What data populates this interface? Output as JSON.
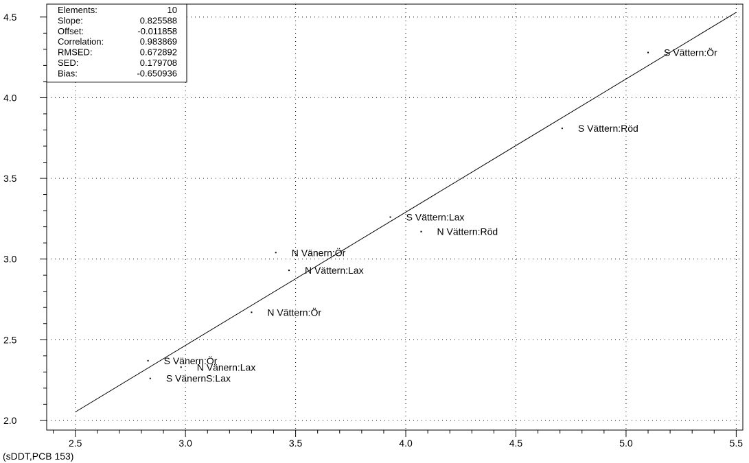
{
  "chart_data": {
    "type": "scatter",
    "xlim": [
      2.37,
      5.53
    ],
    "ylim": [
      1.94,
      4.58
    ],
    "x_ticks": [
      2.5,
      3.0,
      3.5,
      4.0,
      4.5,
      5.0,
      5.5
    ],
    "x_tick_labels": [
      "2.5",
      "3.0",
      "3.5",
      "4.0",
      "4.5",
      "5.0",
      "5.5"
    ],
    "y_ticks": [
      2.0,
      2.5,
      3.0,
      3.5,
      4.0,
      4.5
    ],
    "y_tick_labels": [
      "2.0",
      "2.5",
      "3.0",
      "3.5",
      "4.0",
      "4.5"
    ],
    "grid": true,
    "grid_style": "dotted",
    "footer_label": "(sDDT,PCB 153)",
    "regression_line": {
      "slope": 0.825588,
      "offset": -0.011858,
      "x_range": [
        2.5,
        5.5
      ]
    },
    "stats": [
      {
        "label": "Elements:",
        "value": "10"
      },
      {
        "label": "Slope:",
        "value": "0.825588"
      },
      {
        "label": "Offset:",
        "value": "-0.011858"
      },
      {
        "label": "Correlation:",
        "value": "0.983869"
      },
      {
        "label": "RMSED:",
        "value": "0.672892"
      },
      {
        "label": "SED:",
        "value": "0.179708"
      },
      {
        "label": "Bias:",
        "value": "-0.650936"
      }
    ],
    "points": [
      {
        "label": "S Vättern:Ör",
        "x": 5.1,
        "y": 4.28
      },
      {
        "label": "S Vättern:Röd",
        "x": 4.71,
        "y": 3.81
      },
      {
        "label": "S Vättern:Lax",
        "x": 3.93,
        "y": 3.26
      },
      {
        "label": "N Vättern:Röd",
        "x": 4.07,
        "y": 3.17
      },
      {
        "label": "N Vänern:Ör",
        "x": 3.41,
        "y": 3.04
      },
      {
        "label": "N Vättern:Lax",
        "x": 3.47,
        "y": 2.93
      },
      {
        "label": "N Vättern:Ör",
        "x": 3.3,
        "y": 2.67
      },
      {
        "label": "S Vänern:Ör",
        "x": 2.83,
        "y": 2.37
      },
      {
        "label": "N Vänern:Lax",
        "x": 2.98,
        "y": 2.33
      },
      {
        "label": "S VänernS:Lax",
        "x": 2.84,
        "y": 2.26
      }
    ],
    "colors": {
      "axis": "#000000",
      "grid": "#000000",
      "line": "#000000",
      "point": "#000000"
    }
  }
}
